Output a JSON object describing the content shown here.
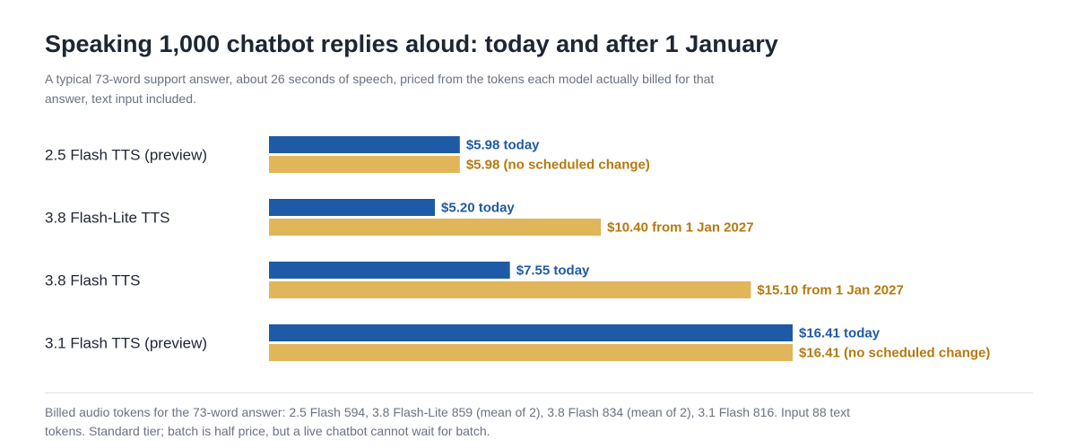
{
  "title": "Speaking 1,000 chatbot replies aloud: today and after 1 January",
  "subtitle": "A typical 73-word support answer, about 26 seconds of speech, priced from the tokens each model actually billed for that answer, text input included.",
  "footnote": "Billed audio tokens for the 73-word answer: 2.5 Flash 594, 3.8 Flash-Lite 859 (mean of 2), 3.8 Flash 834 (mean of 2), 3.1 Flash 816. Input 88 text tokens. Standard tier; batch is half price, but a live chatbot cannot wait for batch.",
  "chart_data": {
    "type": "bar",
    "orientation": "horizontal",
    "categories": [
      "2.5 Flash TTS (preview)",
      "3.8 Flash-Lite TTS",
      "3.8 Flash TTS",
      "3.1 Flash TTS (preview)"
    ],
    "series": [
      {
        "color": "#1f5aa6",
        "values": [
          5.98,
          5.2,
          7.55,
          16.41
        ],
        "labels": [
          "$5.98 today",
          "$5.20 today",
          "$7.55 today",
          "$16.41 today"
        ]
      },
      {
        "color": "#e1b55a",
        "label_color": "#b5790f",
        "values": [
          5.98,
          10.4,
          15.1,
          16.41
        ],
        "labels": [
          "$5.98 (no scheduled change)",
          "$10.40 from 1 Jan 2027",
          "$15.10 from 1 Jan 2027",
          "$16.41 (no scheduled change)"
        ]
      }
    ],
    "xlim": [
      0,
      16.41
    ],
    "grid": false,
    "legend": "none"
  }
}
